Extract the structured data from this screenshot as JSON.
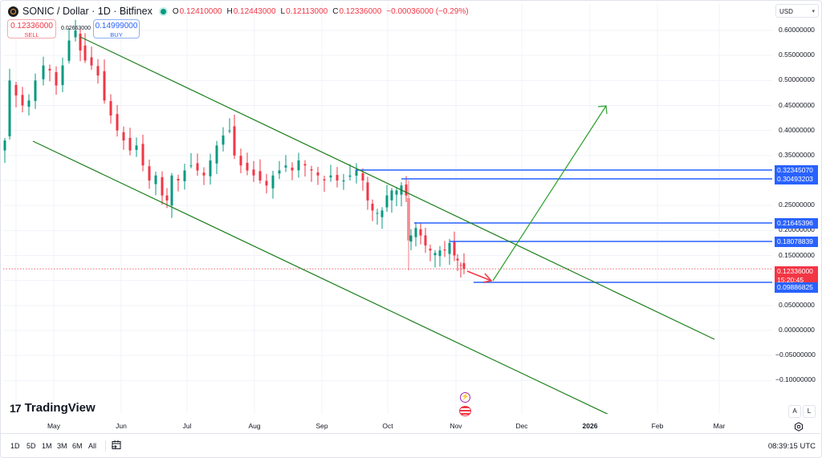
{
  "header": {
    "symbol_title": "SONIC / Dollar · 1D · Bitfinex",
    "ohlc": {
      "open_label": "O",
      "open": "0.12410000",
      "high_label": "H",
      "high": "0.12443000",
      "low_label": "L",
      "low": "0.12113000",
      "close_label": "C",
      "close": "0.12336000",
      "change": "−0.00036000 (−0.29%)"
    }
  },
  "trade": {
    "sell_price": "0.12336000",
    "sell_label": "SELL",
    "spread": "0.02663000",
    "buy_price": "0.14999000",
    "buy_label": "BUY"
  },
  "y_axis": {
    "currency": "USD",
    "ticks": [
      "0.60000000",
      "0.55000000",
      "0.50000000",
      "0.45000000",
      "0.40000000",
      "0.35000000",
      "0.25000000",
      "0.20000000",
      "0.15000000",
      "0.05000000",
      "0.00000000",
      "−0.05000000",
      "−0.10000000"
    ]
  },
  "price_tags": [
    {
      "value": "0.32345070"
    },
    {
      "value": "0.30493203"
    },
    {
      "value": "0.21645396"
    },
    {
      "value": "0.18078839"
    },
    {
      "value": "0.12336000",
      "countdown": "15:20:45"
    },
    {
      "value": "0.09886825"
    }
  ],
  "x_axis": {
    "labels": [
      "May",
      "Jun",
      "Jul",
      "Aug",
      "Sep",
      "Oct",
      "Nov",
      "Dec",
      "2026",
      "Feb",
      "Mar"
    ]
  },
  "bottom_bar": {
    "ranges": [
      "1D",
      "5D",
      "1M",
      "3M",
      "6M",
      "All"
    ],
    "clock": "08:39:15 UTC"
  },
  "branding": {
    "name": "TradingView"
  },
  "scale_buttons": {
    "auto": "A",
    "log": "L"
  },
  "colors": {
    "up": "#089981",
    "down": "#f23645",
    "channel": "#1b7f1b",
    "level": "#2962ff",
    "projection_up": "#2ca02c",
    "projection_down": "#f23645"
  },
  "chart_data": {
    "type": "candlestick",
    "title": "SONIC / Dollar · 1D · Bitfinex",
    "xlabel": "",
    "ylabel": "USD",
    "ylim": [
      -0.13,
      0.63
    ],
    "x_ticks": [
      "May",
      "Jun",
      "Jul",
      "Aug",
      "Sep",
      "Oct",
      "Nov",
      "Dec",
      "2026",
      "Feb",
      "Mar"
    ],
    "last": {
      "open": 0.1241,
      "high": 0.12443,
      "low": 0.12113,
      "close": 0.12336,
      "change": -0.00036,
      "change_pct": -0.29
    },
    "approx_close_path": [
      {
        "date": "Apr-mid",
        "close": 0.44
      },
      {
        "date": "May-01",
        "close": 0.52
      },
      {
        "date": "May-10",
        "close": 0.61
      },
      {
        "date": "May-20",
        "close": 0.49
      },
      {
        "date": "Jun-01",
        "close": 0.38
      },
      {
        "date": "Jun-20",
        "close": 0.26
      },
      {
        "date": "Jul-01",
        "close": 0.3
      },
      {
        "date": "Jul-20",
        "close": 0.4
      },
      {
        "date": "Aug-01",
        "close": 0.3
      },
      {
        "date": "Aug-15",
        "close": 0.29
      },
      {
        "date": "Sep-01",
        "close": 0.32
      },
      {
        "date": "Sep-15",
        "close": 0.31
      },
      {
        "date": "Sep-25",
        "close": 0.24
      },
      {
        "date": "Oct-05",
        "close": 0.29
      },
      {
        "date": "Oct-10",
        "close": 0.17
      },
      {
        "date": "Oct-15",
        "close": 0.21
      },
      {
        "date": "Oct-25",
        "close": 0.16
      },
      {
        "date": "Nov-05",
        "close": 0.12336
      }
    ],
    "horizontal_levels": [
      0.3234507,
      0.30493203,
      0.21645396,
      0.18078839,
      0.09886825
    ],
    "current_price_line": 0.12336,
    "annotations": [
      {
        "type": "channel_upper",
        "from": {
          "date": "May-15",
          "price": 0.58
        },
        "to": {
          "date": "Mar-01",
          "price": -0.015
        }
      },
      {
        "type": "channel_lower",
        "from": {
          "date": "Apr-25",
          "price": 0.38
        },
        "to": {
          "date": "Jan-20",
          "price": -0.175
        }
      },
      {
        "type": "arrow_down",
        "from": {
          "date": "Nov-10",
          "price": 0.124
        },
        "to": {
          "date": "Nov-20",
          "price": 0.098
        }
      },
      {
        "type": "arrow_up",
        "from": {
          "date": "Nov-20",
          "price": 0.098
        },
        "to": {
          "date": "Jan-15",
          "price": 0.455
        }
      }
    ]
  }
}
